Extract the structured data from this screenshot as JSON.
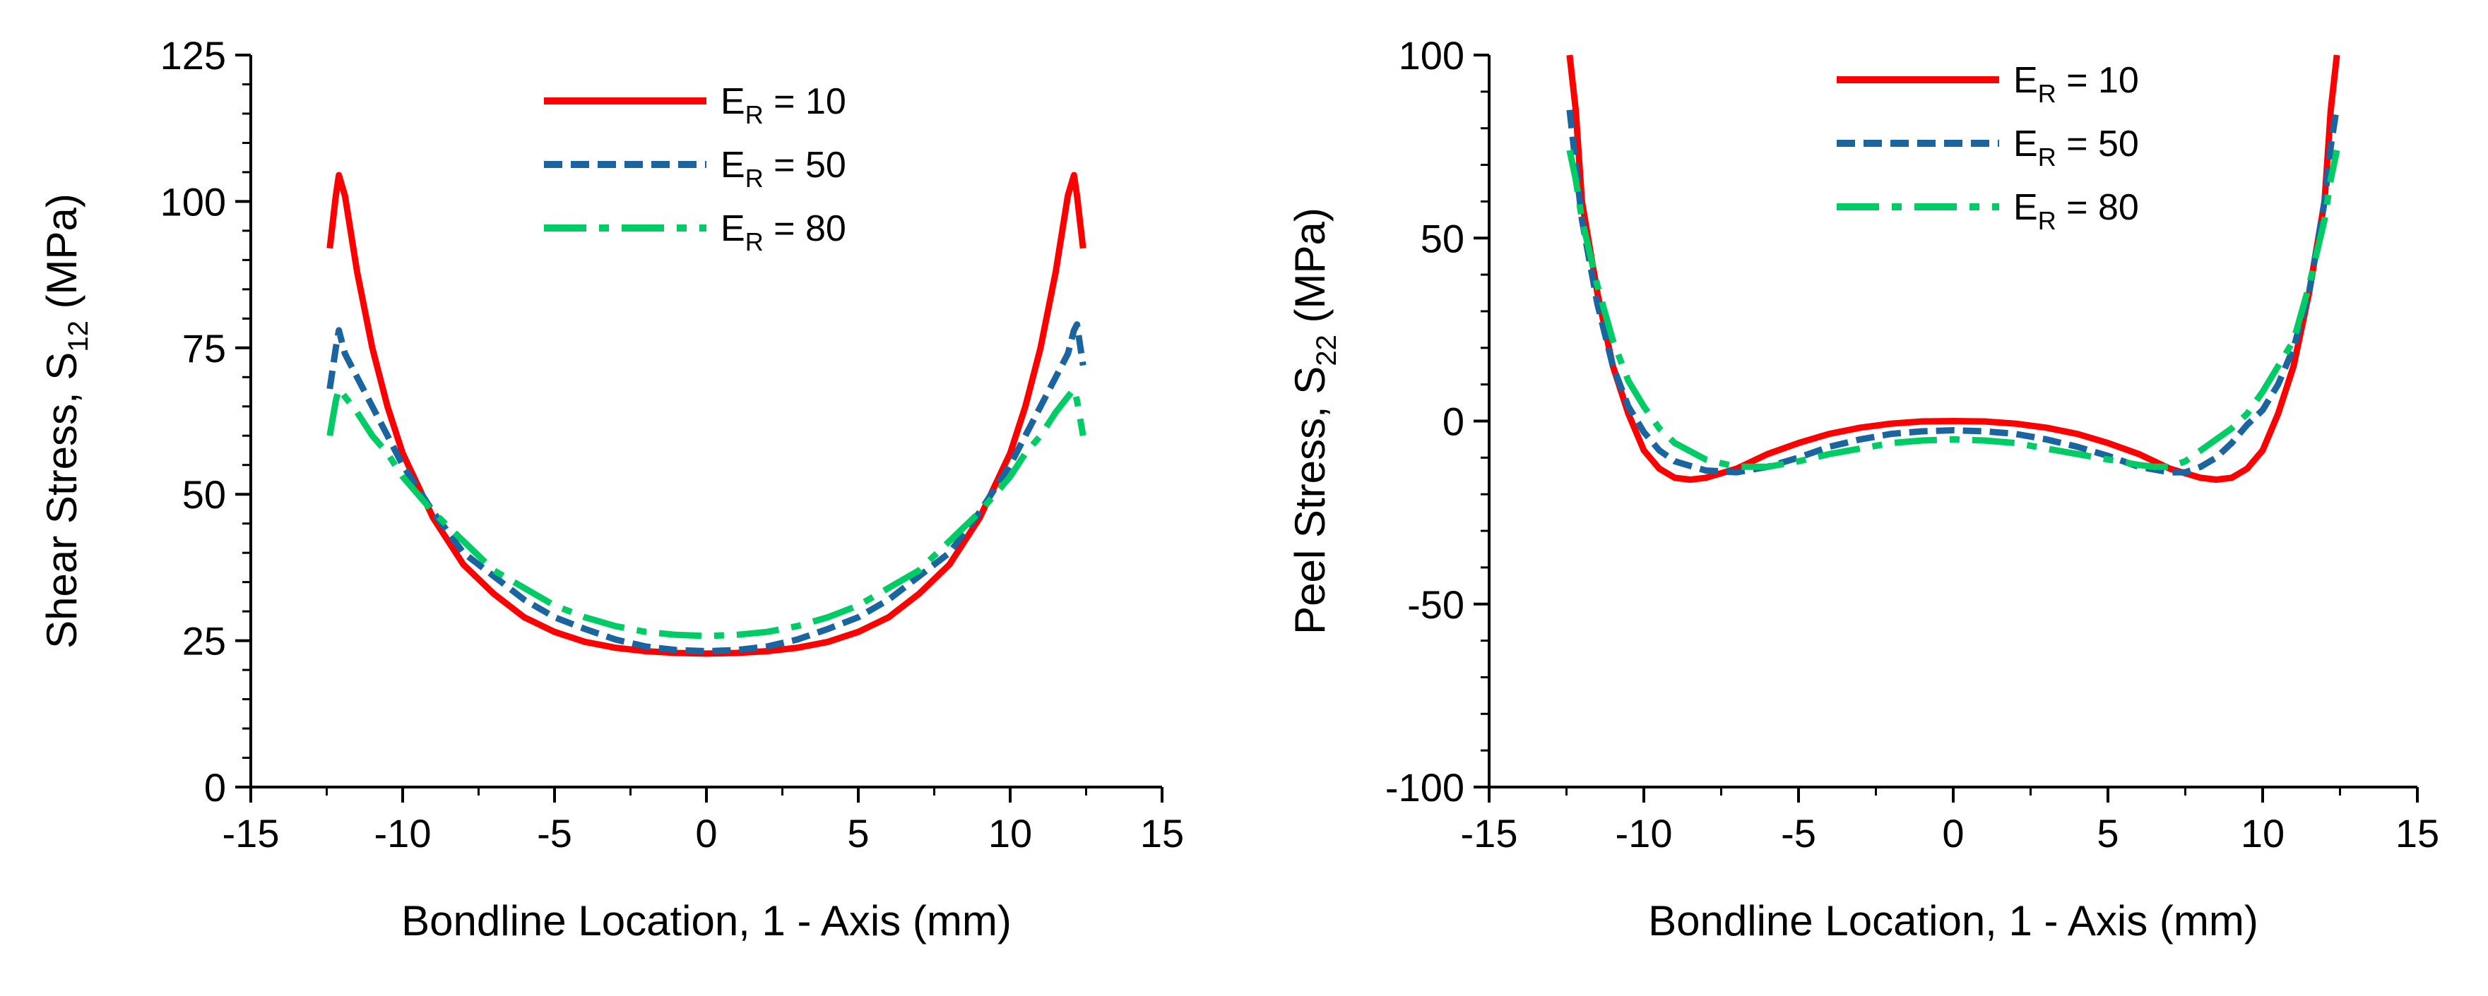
{
  "chart_data": [
    {
      "type": "line",
      "xlabel": "Bondline Location, 1 - Axis (mm)",
      "ylabel": {
        "main": "Shear Stress,  S",
        "sub": "12",
        "suffix": " (MPa)"
      },
      "xlim": [
        -15,
        15
      ],
      "ylim": [
        0,
        125
      ],
      "xticks": [
        -15,
        -10,
        -5,
        0,
        5,
        10,
        15
      ],
      "yticks": [
        0,
        25,
        50,
        75,
        100,
        125
      ],
      "grid": false,
      "legend_position": "top-center",
      "series": [
        {
          "name": {
            "main": "E",
            "sub": "R",
            "suffix": " = 10"
          },
          "color": "#ff0000",
          "dash": "solid",
          "points": [
            [
              -12.4,
              92
            ],
            [
              -12.2,
              101
            ],
            [
              -12.1,
              104.5
            ],
            [
              -11.9,
              101
            ],
            [
              -11.5,
              88
            ],
            [
              -11,
              75
            ],
            [
              -10.5,
              65
            ],
            [
              -10,
              57
            ],
            [
              -9,
              46
            ],
            [
              -8,
              38
            ],
            [
              -7,
              33
            ],
            [
              -6,
              29
            ],
            [
              -5,
              26.5
            ],
            [
              -4,
              24.8
            ],
            [
              -3,
              23.8
            ],
            [
              -2,
              23.2
            ],
            [
              -1,
              22.9
            ],
            [
              0,
              22.8
            ],
            [
              1,
              22.9
            ],
            [
              2,
              23.2
            ],
            [
              3,
              23.8
            ],
            [
              4,
              24.8
            ],
            [
              5,
              26.5
            ],
            [
              6,
              29
            ],
            [
              7,
              33
            ],
            [
              8,
              38
            ],
            [
              9,
              46
            ],
            [
              10,
              57
            ],
            [
              10.5,
              65
            ],
            [
              11,
              75
            ],
            [
              11.5,
              88
            ],
            [
              11.9,
              101
            ],
            [
              12.1,
              104.5
            ],
            [
              12.2,
              101
            ],
            [
              12.4,
              92
            ]
          ]
        },
        {
          "name": {
            "main": "E",
            "sub": "R",
            "suffix": " = 50"
          },
          "color": "#1a64a0",
          "dash": "short-dash",
          "points": [
            [
              -12.4,
              68
            ],
            [
              -12.2,
              75
            ],
            [
              -12.1,
              78
            ],
            [
              -11.9,
              74
            ],
            [
              -11.5,
              70
            ],
            [
              -11,
              65
            ],
            [
              -10.5,
              60
            ],
            [
              -10,
              55
            ],
            [
              -9,
              47
            ],
            [
              -8,
              40
            ],
            [
              -7,
              36
            ],
            [
              -6,
              32
            ],
            [
              -5,
              29
            ],
            [
              -4,
              27
            ],
            [
              -3,
              25.2
            ],
            [
              -2,
              24
            ],
            [
              -1,
              23.4
            ],
            [
              0,
              23.2
            ],
            [
              1,
              23.4
            ],
            [
              2,
              24
            ],
            [
              3,
              25.2
            ],
            [
              4,
              27
            ],
            [
              5,
              29
            ],
            [
              6,
              32
            ],
            [
              7,
              36
            ],
            [
              8,
              40
            ],
            [
              9,
              47
            ],
            [
              10,
              55
            ],
            [
              10.5,
              60
            ],
            [
              11,
              65
            ],
            [
              11.5,
              70
            ],
            [
              11.9,
              74
            ],
            [
              12.1,
              78
            ],
            [
              12.2,
              79
            ],
            [
              12.4,
              72
            ]
          ]
        },
        {
          "name": {
            "main": "E",
            "sub": "R",
            "suffix": " = 80"
          },
          "color": "#00cc66",
          "dash": "dash-dot",
          "points": [
            [
              -12.4,
              60
            ],
            [
              -12.2,
              66
            ],
            [
              -12.1,
              68
            ],
            [
              -11.8,
              66
            ],
            [
              -11.5,
              64
            ],
            [
              -11,
              60
            ],
            [
              -10.5,
              57
            ],
            [
              -10,
              53
            ],
            [
              -9,
              47
            ],
            [
              -8,
              42
            ],
            [
              -7,
              37
            ],
            [
              -6,
              34
            ],
            [
              -5,
              31
            ],
            [
              -4,
              29
            ],
            [
              -3,
              27.5
            ],
            [
              -2,
              26.5
            ],
            [
              -1,
              26
            ],
            [
              0,
              25.8
            ],
            [
              1,
              26
            ],
            [
              2,
              26.5
            ],
            [
              3,
              27.5
            ],
            [
              4,
              29
            ],
            [
              5,
              31
            ],
            [
              6,
              34
            ],
            [
              7,
              37
            ],
            [
              8,
              42
            ],
            [
              9,
              47
            ],
            [
              10,
              53
            ],
            [
              10.5,
              57
            ],
            [
              11,
              60
            ],
            [
              11.5,
              64
            ],
            [
              11.8,
              66
            ],
            [
              12.1,
              68
            ],
            [
              12.2,
              66
            ],
            [
              12.4,
              60
            ]
          ]
        }
      ]
    },
    {
      "type": "line",
      "xlabel": "Bondline Location, 1 - Axis (mm)",
      "ylabel": {
        "main": "Peel Stress,  S",
        "sub": "22",
        "suffix": " (MPa)"
      },
      "xlim": [
        -15,
        15
      ],
      "ylim": [
        -100,
        100
      ],
      "xticks": [
        -15,
        -10,
        -5,
        0,
        5,
        10,
        15
      ],
      "yticks": [
        -100,
        -50,
        0,
        50,
        100
      ],
      "grid": false,
      "legend_position": "top-center",
      "series": [
        {
          "name": {
            "main": "E",
            "sub": "R",
            "suffix": " = 10"
          },
          "color": "#ff0000",
          "dash": "solid",
          "points": [
            [
              -12.4,
              100
            ],
            [
              -12.2,
              85
            ],
            [
              -12,
              60
            ],
            [
              -11.5,
              35
            ],
            [
              -11,
              15
            ],
            [
              -10.5,
              2
            ],
            [
              -10,
              -8
            ],
            [
              -9.5,
              -13
            ],
            [
              -9,
              -15.5
            ],
            [
              -8.5,
              -16
            ],
            [
              -8,
              -15.5
            ],
            [
              -7,
              -13
            ],
            [
              -6,
              -9
            ],
            [
              -5,
              -6
            ],
            [
              -4,
              -3.5
            ],
            [
              -3,
              -1.8
            ],
            [
              -2,
              -0.7
            ],
            [
              -1,
              -0.1
            ],
            [
              0,
              0
            ],
            [
              1,
              -0.1
            ],
            [
              2,
              -0.7
            ],
            [
              3,
              -1.8
            ],
            [
              4,
              -3.5
            ],
            [
              5,
              -6
            ],
            [
              6,
              -9
            ],
            [
              7,
              -13
            ],
            [
              8,
              -15.5
            ],
            [
              8.5,
              -16
            ],
            [
              9,
              -15.5
            ],
            [
              9.5,
              -13
            ],
            [
              10,
              -8
            ],
            [
              10.5,
              2
            ],
            [
              11,
              15
            ],
            [
              11.5,
              35
            ],
            [
              12,
              60
            ],
            [
              12.2,
              85
            ],
            [
              12.4,
              100
            ]
          ]
        },
        {
          "name": {
            "main": "E",
            "sub": "R",
            "suffix": " = 50"
          },
          "color": "#1a64a0",
          "dash": "short-dash",
          "points": [
            [
              -12.4,
              85
            ],
            [
              -12.2,
              70
            ],
            [
              -12,
              55
            ],
            [
              -11.5,
              32
            ],
            [
              -11,
              15
            ],
            [
              -10.5,
              4
            ],
            [
              -10,
              -3
            ],
            [
              -9.5,
              -8
            ],
            [
              -9,
              -11
            ],
            [
              -8,
              -13.5
            ],
            [
              -7,
              -14
            ],
            [
              -6,
              -12.5
            ],
            [
              -5,
              -10
            ],
            [
              -4,
              -7
            ],
            [
              -3,
              -5
            ],
            [
              -2,
              -3.5
            ],
            [
              -1,
              -2.8
            ],
            [
              0,
              -2.5
            ],
            [
              1,
              -2.8
            ],
            [
              2,
              -3.5
            ],
            [
              3,
              -5
            ],
            [
              4,
              -7
            ],
            [
              5,
              -9.5
            ],
            [
              6,
              -12.5
            ],
            [
              7,
              -14
            ],
            [
              7.5,
              -14
            ],
            [
              8,
              -12.5
            ],
            [
              8.5,
              -10
            ],
            [
              9,
              -6
            ],
            [
              9.5,
              -1
            ],
            [
              10,
              3
            ],
            [
              10.5,
              10
            ],
            [
              11,
              20
            ],
            [
              11.5,
              35
            ],
            [
              12,
              60
            ],
            [
              12.2,
              75
            ],
            [
              12.4,
              86
            ]
          ]
        },
        {
          "name": {
            "main": "E",
            "sub": "R",
            "suffix": " = 80"
          },
          "color": "#00cc66",
          "dash": "dash-dot",
          "points": [
            [
              -12.4,
              74
            ],
            [
              -12.2,
              66
            ],
            [
              -12,
              55
            ],
            [
              -11.5,
              37
            ],
            [
              -11,
              22
            ],
            [
              -10.5,
              11
            ],
            [
              -10,
              4
            ],
            [
              -9.5,
              -2
            ],
            [
              -9,
              -6
            ],
            [
              -8,
              -10.5
            ],
            [
              -7,
              -12.5
            ],
            [
              -6,
              -12.5
            ],
            [
              -5,
              -11
            ],
            [
              -4,
              -9
            ],
            [
              -3,
              -7.5
            ],
            [
              -2,
              -6
            ],
            [
              -1,
              -5.3
            ],
            [
              0,
              -5
            ],
            [
              1,
              -5.3
            ],
            [
              2,
              -6
            ],
            [
              3,
              -7.5
            ],
            [
              4,
              -9
            ],
            [
              5,
              -10.5
            ],
            [
              6,
              -12
            ],
            [
              6.5,
              -12.5
            ],
            [
              7,
              -12.5
            ],
            [
              7.5,
              -11
            ],
            [
              8,
              -8
            ],
            [
              8.5,
              -5
            ],
            [
              9,
              -2
            ],
            [
              9.5,
              2
            ],
            [
              10,
              8
            ],
            [
              10.5,
              15
            ],
            [
              11,
              22
            ],
            [
              11.5,
              37
            ],
            [
              12,
              55
            ],
            [
              12.2,
              66
            ],
            [
              12.4,
              74
            ]
          ]
        }
      ]
    }
  ]
}
